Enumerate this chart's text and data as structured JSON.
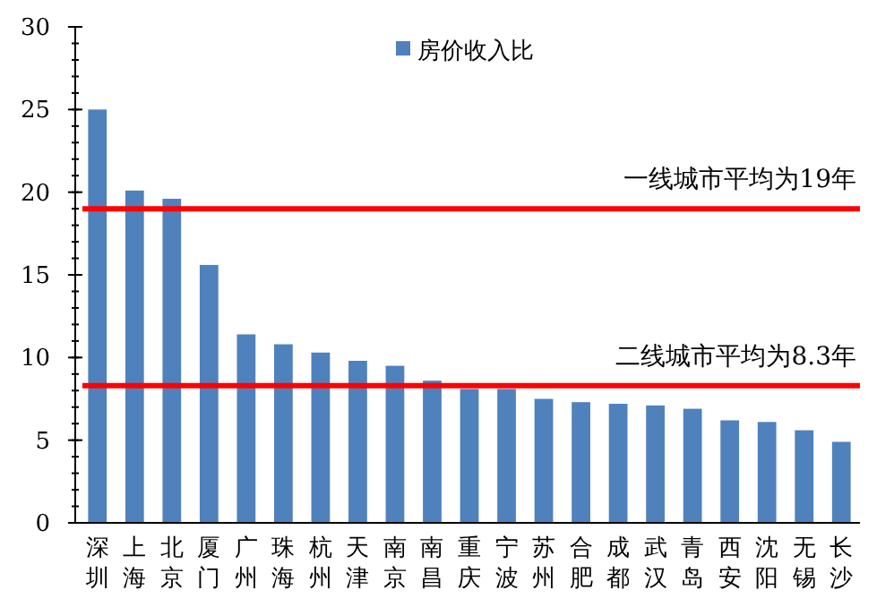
{
  "chart_data": {
    "type": "bar",
    "categories": [
      "深圳",
      "上海",
      "北京",
      "厦门",
      "广州",
      "珠海",
      "杭州",
      "天津",
      "南京",
      "南昌",
      "重庆",
      "宁波",
      "苏州",
      "合肥",
      "成都",
      "武汉",
      "青岛",
      "西安",
      "沈阳",
      "无锡",
      "长沙"
    ],
    "series": [
      {
        "name": "房价收入比",
        "color": "#4f81bd",
        "values": [
          25,
          20.1,
          19.6,
          15.6,
          11.4,
          10.8,
          10.3,
          9.8,
          9.5,
          8.6,
          8.1,
          8.1,
          7.5,
          7.3,
          7.2,
          7.1,
          6.9,
          6.2,
          6.1,
          5.6,
          4.9
        ]
      }
    ],
    "ylim": [
      0,
      30
    ],
    "yticks": [
      0,
      5,
      10,
      15,
      20,
      25,
      30
    ],
    "grid": false,
    "legend": "top",
    "ref_lines": [
      {
        "axis": "y",
        "value": 19,
        "label": "一线城市平均为19年",
        "color": "#ff0000"
      },
      {
        "axis": "y",
        "value": 8.3,
        "label": "二线城市平均为8.3年",
        "color": "#ff0000"
      }
    ]
  }
}
